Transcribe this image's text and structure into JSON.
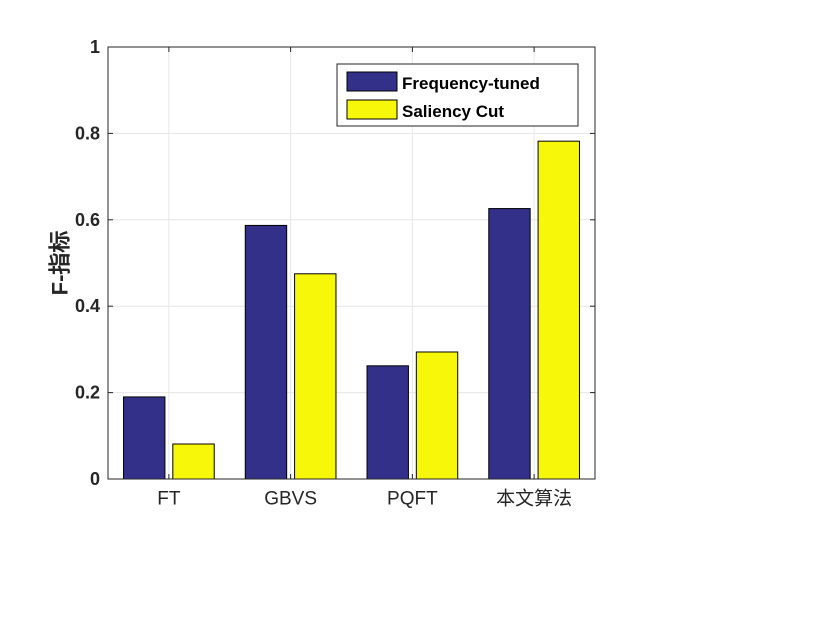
{
  "chart_data": {
    "type": "bar",
    "categories": [
      "FT",
      "GBVS",
      "PQFT",
      "本文算法"
    ],
    "series": [
      {
        "name": "Frequency-tuned",
        "color": "#33308a",
        "values": [
          0.19,
          0.587,
          0.262,
          0.626
        ]
      },
      {
        "name": "Saliency Cut",
        "color": "#f7f70a",
        "values": [
          0.081,
          0.475,
          0.294,
          0.782
        ]
      }
    ],
    "ylabel": "F-指标",
    "ylim": [
      0,
      1
    ],
    "yticks": [
      "0",
      "0.2",
      "0.4",
      "0.6",
      "0.8",
      "1"
    ],
    "grid": true,
    "legend_position": "top-right"
  }
}
